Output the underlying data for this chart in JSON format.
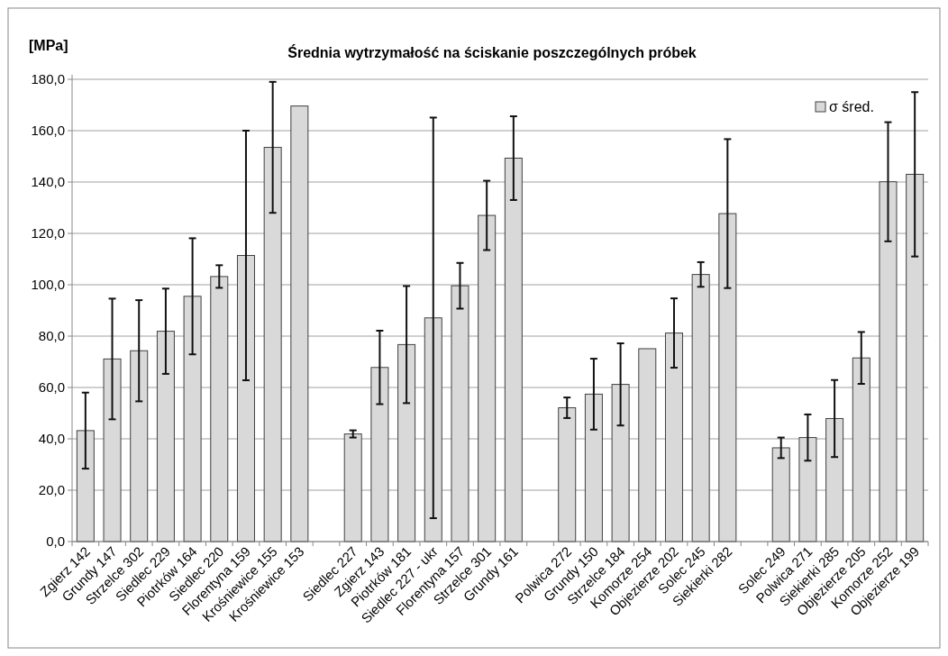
{
  "chart_data": {
    "type": "bar",
    "title": "Średnia wytrzymałość na ściskanie poszczególnych próbek",
    "ylabel": "[MPa]",
    "categories": [
      "Zgierz 142",
      "Grundy 147",
      "Strzelce 302",
      "Siedlec 229",
      "Piotrków 164",
      "Siedlec 220",
      "Florentyna 159",
      "Krośniewice 155",
      "Krośniewice 153",
      null,
      "Siedlec 227",
      "Zgierz 143",
      "Piotrków 181",
      "Siedlec 227 - ukr",
      "Florentyna 157",
      "Strzelce 301",
      "Grundy 161",
      null,
      "Polwica 272",
      "Grundy 150",
      "Strzelce 184",
      "Komorze 254",
      "Objezierze 202",
      "Solec 245",
      "Siekierki 282",
      null,
      "Solec 249",
      "Polwica 271",
      "Siekierki 285",
      "Objezierze 205",
      "Komorze 252",
      "Objezierze 199"
    ],
    "series": [
      {
        "name": "σ śred.",
        "color": "#d9d9d9",
        "values": [
          43.2,
          71.1,
          74.3,
          81.9,
          95.5,
          103.2,
          111.4,
          153.5,
          169.6,
          null,
          41.9,
          67.8,
          76.7,
          87.1,
          99.6,
          127.0,
          149.3,
          null,
          52.1,
          57.4,
          61.2,
          75.1,
          81.2,
          104.0,
          127.7,
          null,
          36.5,
          40.5,
          47.9,
          71.5,
          140.1,
          143.0
        ],
        "errors": [
          14.8,
          23.5,
          19.7,
          16.6,
          22.6,
          4.4,
          48.6,
          25.5,
          null,
          null,
          1.4,
          14.3,
          22.8,
          78,
          8.9,
          13.5,
          16.3,
          null,
          4,
          13.8,
          16,
          null,
          13.5,
          4.8,
          29,
          null,
          4,
          9,
          15,
          10.1,
          23.2,
          32
        ]
      }
    ],
    "ylim": [
      0,
      180
    ],
    "yticks": [
      {
        "value": 0,
        "label": "0,0"
      },
      {
        "value": 20,
        "label": "20,0"
      },
      {
        "value": 40,
        "label": "40,0"
      },
      {
        "value": 60,
        "label": "60,0"
      },
      {
        "value": 80,
        "label": "80,0"
      },
      {
        "value": 100,
        "label": "100,0"
      },
      {
        "value": 120,
        "label": "120,0"
      },
      {
        "value": 140,
        "label": "140,0"
      },
      {
        "value": 160,
        "label": "160,0"
      },
      {
        "value": 180,
        "label": "180,0"
      }
    ],
    "grid": "y",
    "legend": "top right"
  }
}
